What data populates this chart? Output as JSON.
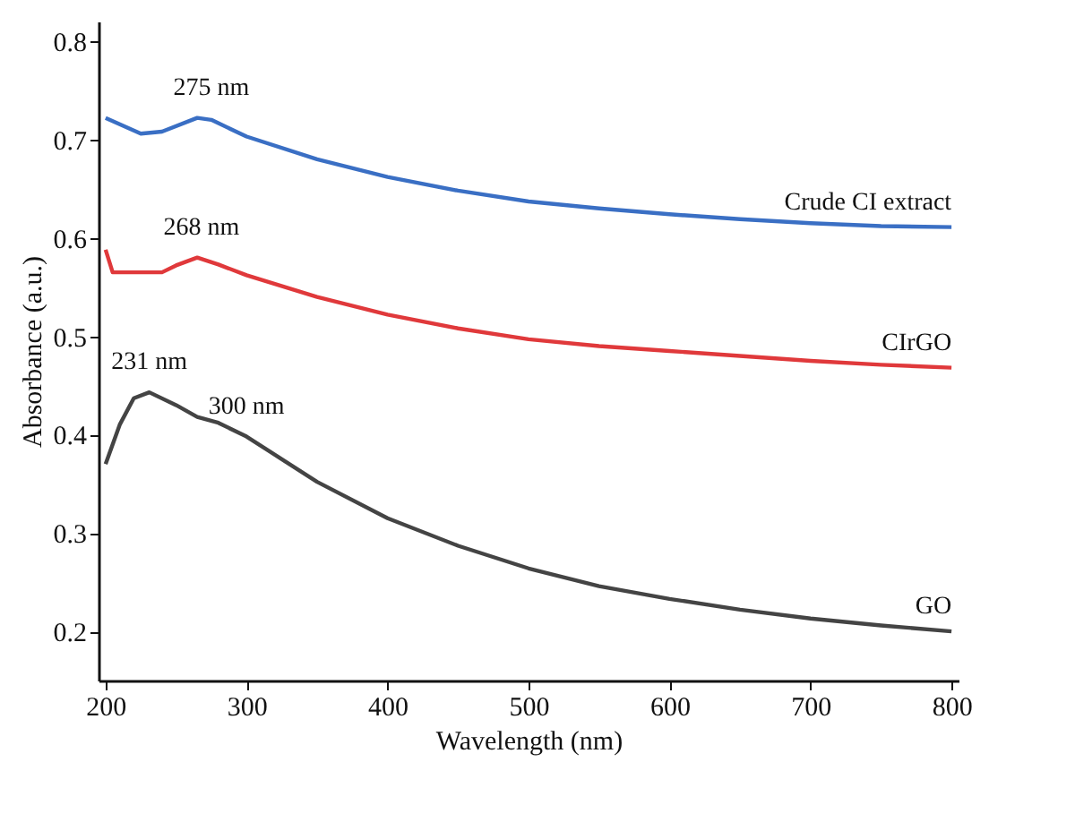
{
  "chart_data": {
    "type": "line",
    "xlabel": "Wavelength (nm)",
    "ylabel": "Absorbance (a.u.)",
    "xlim": [
      195,
      805
    ],
    "ylim": [
      0.15,
      0.82
    ],
    "xticks": [
      200,
      300,
      400,
      500,
      600,
      700,
      800
    ],
    "yticks": [
      0.2,
      0.3,
      0.4,
      0.5,
      0.6,
      0.7,
      0.8
    ],
    "grid": false,
    "legend": false,
    "marker": "none",
    "line_style": "solid",
    "series": [
      {
        "name": "Crude CI extract",
        "color": "#3a6fc4",
        "x": [
          200,
          225,
          240,
          265,
          275,
          300,
          350,
          400,
          450,
          500,
          550,
          600,
          650,
          700,
          750,
          800
        ],
        "values": [
          0.722,
          0.706,
          0.708,
          0.722,
          0.72,
          0.703,
          0.68,
          0.662,
          0.648,
          0.637,
          0.63,
          0.624,
          0.619,
          0.615,
          0.612,
          0.611
        ]
      },
      {
        "name": "CIrGO",
        "color": "#e0393b",
        "x": [
          200,
          205,
          240,
          250,
          265,
          280,
          300,
          350,
          400,
          450,
          500,
          550,
          600,
          650,
          700,
          750,
          800
        ],
        "values": [
          0.588,
          0.565,
          0.565,
          0.572,
          0.58,
          0.573,
          0.562,
          0.54,
          0.522,
          0.508,
          0.497,
          0.49,
          0.485,
          0.48,
          0.475,
          0.471,
          0.468
        ]
      },
      {
        "name": "GO",
        "color": "#444444",
        "x": [
          200,
          210,
          220,
          231,
          250,
          265,
          280,
          300,
          325,
          350,
          400,
          450,
          500,
          550,
          600,
          650,
          700,
          750,
          800
        ],
        "values": [
          0.37,
          0.41,
          0.437,
          0.443,
          0.43,
          0.418,
          0.412,
          0.398,
          0.375,
          0.352,
          0.315,
          0.287,
          0.264,
          0.246,
          0.233,
          0.222,
          0.213,
          0.206,
          0.2
        ]
      }
    ],
    "annotations": [
      {
        "text": "275 nm",
        "x": 275,
        "y": 0.722
      },
      {
        "text": "268 nm",
        "x": 268,
        "y": 0.58
      },
      {
        "text": "231 nm",
        "x": 231,
        "y": 0.443
      },
      {
        "text": "300 nm",
        "x": 300,
        "y": 0.398
      }
    ]
  }
}
